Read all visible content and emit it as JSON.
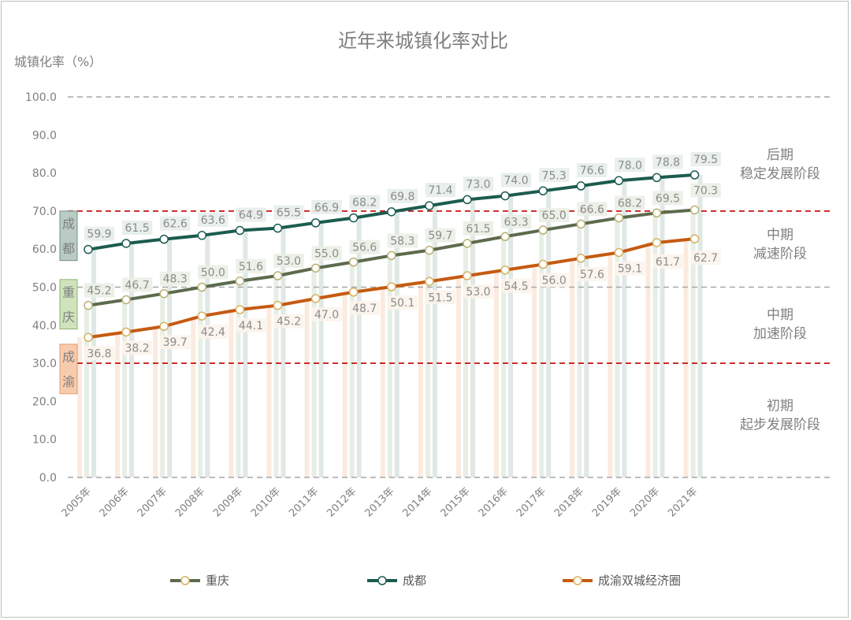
{
  "chart_data": {
    "type": "line",
    "title": "近年来城镇化率对比",
    "ylabel": "城镇化率（%）",
    "xlabel": "",
    "ylim": [
      0,
      100
    ],
    "yticks": [
      "0.0",
      "10.0",
      "20.0",
      "30.0",
      "40.0",
      "50.0",
      "60.0",
      "70.0",
      "80.0",
      "90.0",
      "100.0"
    ],
    "categories": [
      "2005年",
      "2006年",
      "2007年",
      "2008年",
      "2009年",
      "2010年",
      "2011年",
      "2012年",
      "2013年",
      "2014年",
      "2015年",
      "2016年",
      "2017年",
      "2018年",
      "2019年",
      "2020年",
      "2021年"
    ],
    "series": [
      {
        "name": "重庆",
        "color": "#5c6b4c",
        "values": [
          45.2,
          46.7,
          48.3,
          50.0,
          51.6,
          53.0,
          55.0,
          56.6,
          58.3,
          59.7,
          61.5,
          63.3,
          65.0,
          66.6,
          68.2,
          69.5,
          70.3
        ]
      },
      {
        "name": "成都",
        "color": "#1b5c4f",
        "values": [
          59.9,
          61.5,
          62.6,
          63.6,
          64.9,
          65.5,
          66.9,
          68.2,
          69.8,
          71.4,
          73.0,
          74.0,
          75.3,
          76.6,
          78.0,
          78.8,
          79.5
        ]
      },
      {
        "name": "成渝双城经济圈",
        "color": "#c55a11",
        "values": [
          36.8,
          38.2,
          39.7,
          42.4,
          44.1,
          45.2,
          47.0,
          48.7,
          50.1,
          51.5,
          53.0,
          54.5,
          56.0,
          57.6,
          59.1,
          61.7,
          62.7
        ]
      }
    ],
    "reference_lines": [
      {
        "value": 100,
        "style": "dashed",
        "color": "#a6a6a6"
      },
      {
        "value": 70,
        "style": "dashed",
        "color": "#c00000"
      },
      {
        "value": 50,
        "style": "dashed",
        "color": "#a6a6a6"
      },
      {
        "value": 30,
        "style": "dashed",
        "color": "#c00000"
      },
      {
        "value": 0,
        "style": "dashed",
        "color": "#a6a6a6"
      }
    ],
    "stages": [
      {
        "line1": "后期",
        "line2": "稳定发展阶段",
        "y_center": 82
      },
      {
        "line1": "中期",
        "line2": "减速阶段",
        "y_center": 61
      },
      {
        "line1": "中期",
        "line2": "加速阶段",
        "y_center": 40
      },
      {
        "line1": "初期",
        "line2": "起步发展阶段",
        "y_center": 16
      }
    ],
    "side_markers": [
      {
        "chars": [
          "成",
          "都"
        ],
        "fill": "#b9cbc4",
        "stroke": "#6f8f84",
        "y_top": 70,
        "y_bottom": 57
      },
      {
        "chars": [
          "重",
          "庆"
        ],
        "fill": "#cfe3bd",
        "stroke": "#8fb071",
        "y_top": 52,
        "y_bottom": 39
      },
      {
        "chars": [
          "成",
          "渝"
        ],
        "fill": "#f7cbad",
        "stroke": "#e59a6c",
        "y_top": 35,
        "y_bottom": 22
      }
    ],
    "legend": [
      {
        "label": "重庆",
        "color": "#5c6b4c"
      },
      {
        "label": "成都",
        "color": "#1b5c4f"
      },
      {
        "label": "成渝双城经济圈",
        "color": "#c55a11"
      }
    ],
    "background_bar_colors": [
      "#fbe9dc",
      "#e4ece3",
      "#dde6e3"
    ]
  }
}
